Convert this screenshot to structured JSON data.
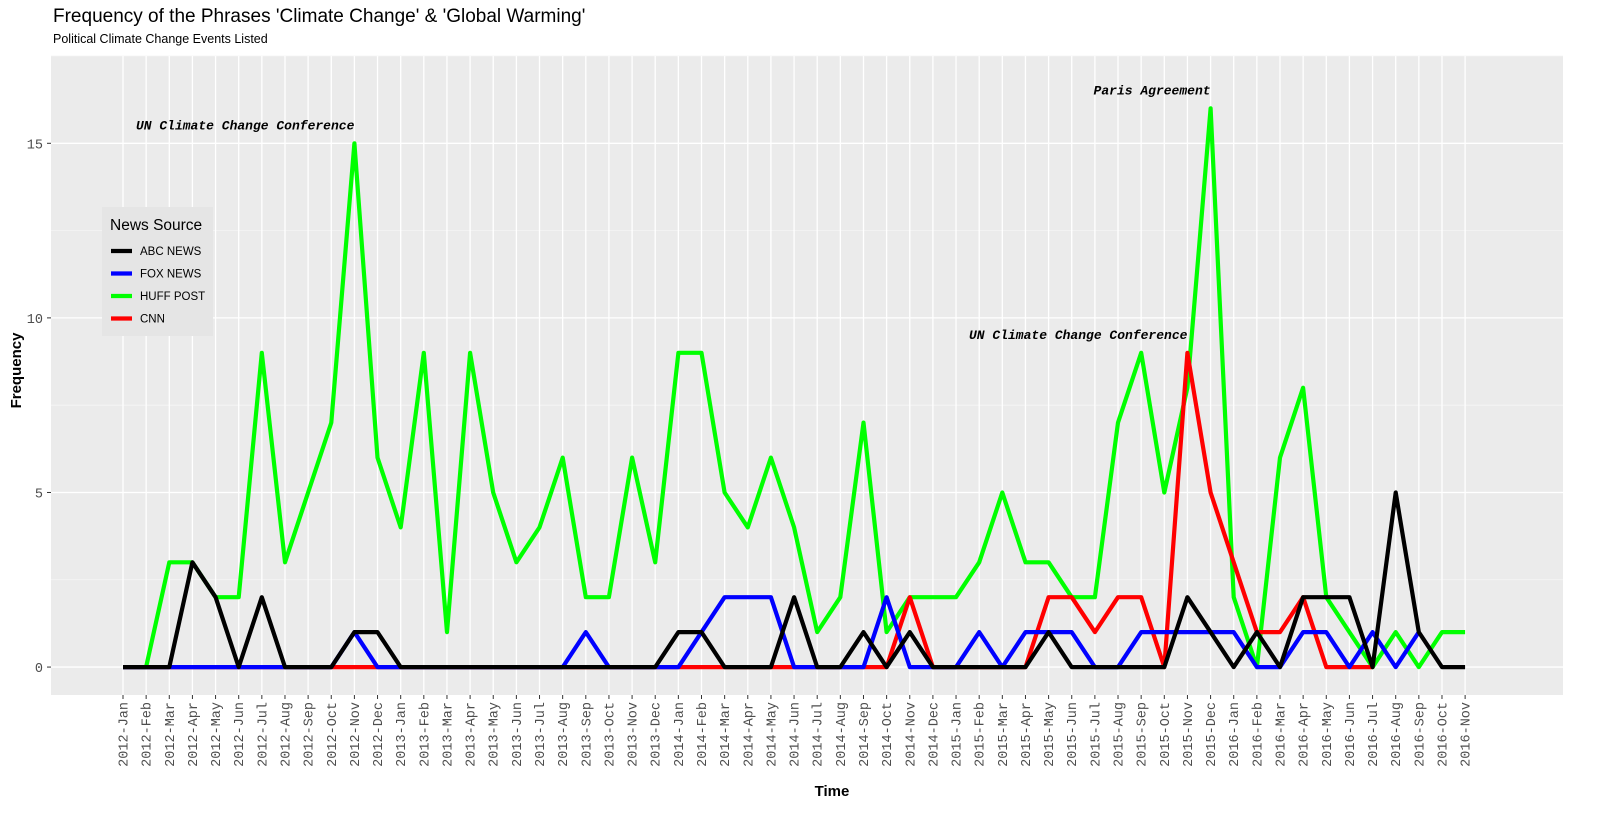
{
  "chart_data": {
    "type": "line",
    "title": "Frequency of the Phrases 'Climate Change' & 'Global Warming'",
    "subtitle": "Political Climate Change Events Listed",
    "xlabel": "Time",
    "ylabel": "Frequency",
    "ylim": [
      -0.8,
      17.5
    ],
    "yticks": [
      0,
      5,
      10,
      15
    ],
    "grid": true,
    "background": "#ebebeb",
    "legend": {
      "title": "News Source",
      "position": "left"
    },
    "categories": [
      "2012-Jan",
      "2012-Feb",
      "2012-Mar",
      "2012-Apr",
      "2012-May",
      "2012-Jun",
      "2012-Jul",
      "2012-Aug",
      "2012-Sep",
      "2012-Oct",
      "2012-Nov",
      "2012-Dec",
      "2013-Jan",
      "2013-Feb",
      "2013-Mar",
      "2013-Apr",
      "2013-May",
      "2013-Jun",
      "2013-Jul",
      "2013-Aug",
      "2013-Sep",
      "2013-Oct",
      "2013-Nov",
      "2013-Dec",
      "2014-Jan",
      "2014-Feb",
      "2014-Mar",
      "2014-Apr",
      "2014-May",
      "2014-Jun",
      "2014-Jul",
      "2014-Aug",
      "2014-Sep",
      "2014-Oct",
      "2014-Nov",
      "2014-Dec",
      "2015-Jan",
      "2015-Feb",
      "2015-Mar",
      "2015-Apr",
      "2015-May",
      "2015-Jun",
      "2015-Jul",
      "2015-Aug",
      "2015-Sep",
      "2015-Oct",
      "2015-Nov",
      "2015-Dec",
      "2016-Jan",
      "2016-Feb",
      "2016-Mar",
      "2016-Apr",
      "2016-May",
      "2016-Jun",
      "2016-Jul",
      "2016-Aug",
      "2016-Sep",
      "2016-Oct",
      "2016-Nov"
    ],
    "series": [
      {
        "name": "HUFF POST",
        "color": "#00ff00",
        "values": [
          0,
          0,
          3,
          3,
          2,
          2,
          9,
          3,
          5,
          7,
          15,
          6,
          4,
          9,
          1,
          9,
          5,
          3,
          4,
          6,
          2,
          2,
          6,
          3,
          9,
          9,
          5,
          4,
          6,
          4,
          1,
          2,
          7,
          1,
          2,
          2,
          2,
          3,
          5,
          3,
          3,
          2,
          2,
          7,
          9,
          5,
          8,
          16,
          2,
          0,
          6,
          8,
          2,
          1,
          0,
          1,
          0,
          1,
          1
        ]
      },
      {
        "name": "CNN",
        "color": "#ff0000",
        "values": [
          0,
          0,
          0,
          0,
          0,
          0,
          0,
          0,
          0,
          0,
          0,
          0,
          0,
          0,
          0,
          0,
          0,
          0,
          0,
          0,
          0,
          0,
          0,
          0,
          0,
          0,
          0,
          0,
          0,
          0,
          0,
          0,
          0,
          0,
          2,
          0,
          0,
          0,
          0,
          0,
          2,
          2,
          1,
          2,
          2,
          0,
          9,
          5,
          3,
          1,
          1,
          2,
          0,
          0,
          0,
          null,
          null,
          null,
          null
        ]
      },
      {
        "name": "FOX NEWS",
        "color": "#0000ff",
        "values": [
          0,
          0,
          0,
          0,
          0,
          0,
          0,
          0,
          0,
          0,
          1,
          0,
          0,
          0,
          0,
          0,
          0,
          0,
          0,
          0,
          1,
          0,
          0,
          0,
          0,
          1,
          2,
          2,
          2,
          0,
          0,
          0,
          0,
          2,
          0,
          0,
          0,
          1,
          0,
          1,
          1,
          1,
          0,
          0,
          1,
          1,
          1,
          1,
          1,
          0,
          0,
          1,
          1,
          0,
          1,
          0,
          1,
          null,
          null
        ]
      },
      {
        "name": "ABC NEWS",
        "color": "#000000",
        "values": [
          0,
          0,
          0,
          3,
          2,
          0,
          2,
          0,
          0,
          0,
          1,
          1,
          0,
          0,
          0,
          0,
          0,
          0,
          0,
          0,
          0,
          0,
          0,
          0,
          1,
          1,
          0,
          0,
          0,
          2,
          0,
          0,
          1,
          0,
          1,
          0,
          0,
          0,
          0,
          0,
          1,
          0,
          0,
          0,
          0,
          0,
          2,
          1,
          0,
          1,
          0,
          2,
          2,
          2,
          0,
          5,
          1,
          0,
          0
        ]
      }
    ],
    "legend_order": [
      "ABC NEWS",
      "FOX NEWS",
      "HUFF POST",
      "CNN"
    ],
    "annotations": [
      {
        "text": "UN Climate Change Conference",
        "x": "2012-Nov",
        "y": 15.4
      },
      {
        "text": "Paris Agreement",
        "x": "2015-Dec",
        "y": 16.4
      },
      {
        "text": "UN Climate Change Conference",
        "x": "2015-Nov",
        "y": 9.4
      }
    ]
  }
}
